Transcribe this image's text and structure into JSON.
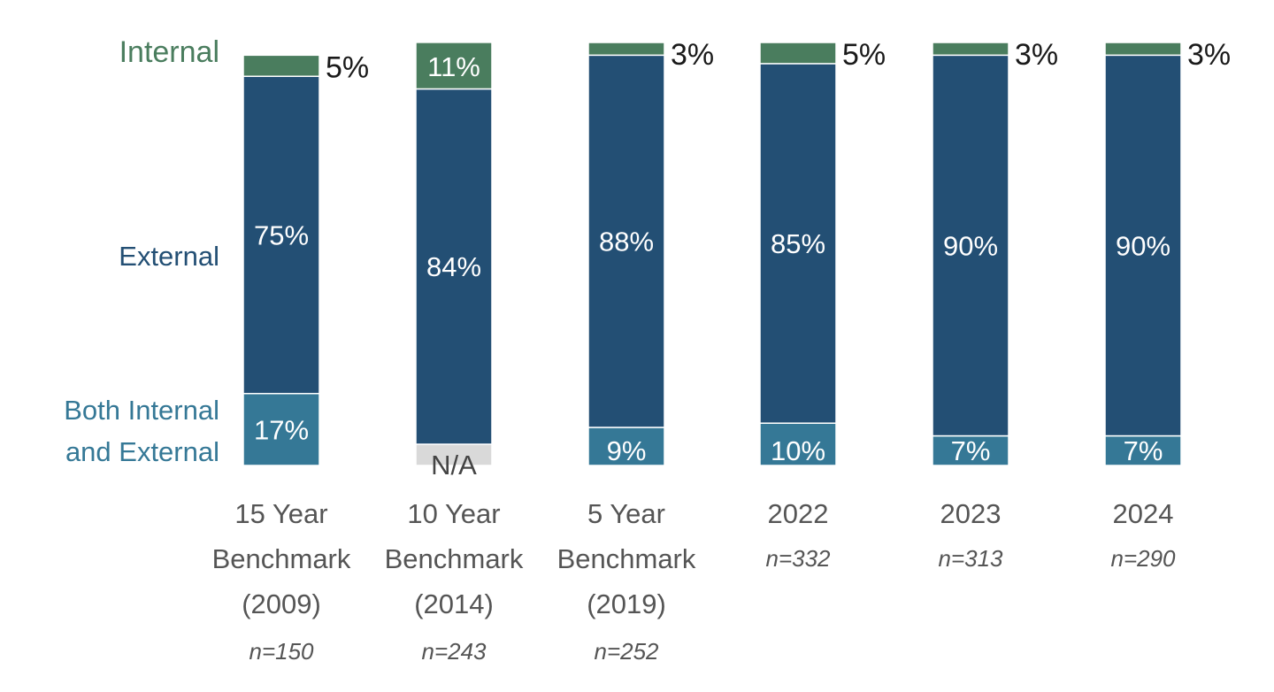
{
  "colors": {
    "internal": "#4a7d5e",
    "external": "#234f74",
    "both": "#357896",
    "na": "#d9d9d9"
  },
  "chart_data": {
    "type": "bar",
    "stacked": true,
    "normalized": true,
    "ylim": [
      0,
      100
    ],
    "grid": false,
    "legend": "left",
    "categories": [
      [
        "15 Year",
        "Benchmark",
        "(2009)"
      ],
      [
        "10 Year",
        "Benchmark",
        "(2014)"
      ],
      [
        "5 Year",
        "Benchmark",
        "(2019)"
      ],
      [
        "2022"
      ],
      [
        "2023"
      ],
      [
        "2024"
      ]
    ],
    "sample_sizes": [
      "n=150",
      "n=243",
      "n=252",
      "n=332",
      "n=313",
      "n=290"
    ],
    "series": [
      {
        "name": "Both Internal and External",
        "legend_lines": [
          "Both Internal",
          "and External"
        ],
        "values": [
          17,
          null,
          9,
          10,
          7,
          7
        ],
        "labels": [
          "17%",
          "N/A",
          "9%",
          "10%",
          "7%",
          "7%"
        ]
      },
      {
        "name": "External",
        "legend_lines": [
          "External"
        ],
        "values": [
          75,
          84,
          88,
          85,
          90,
          90
        ],
        "labels": [
          "75%",
          "84%",
          "88%",
          "85%",
          "90%",
          "90%"
        ]
      },
      {
        "name": "Internal",
        "legend_lines": [
          "Internal"
        ],
        "values": [
          5,
          11,
          3,
          5,
          3,
          3
        ],
        "labels": [
          "5%",
          "11%",
          "3%",
          "5%",
          "3%",
          "3%"
        ]
      }
    ]
  }
}
